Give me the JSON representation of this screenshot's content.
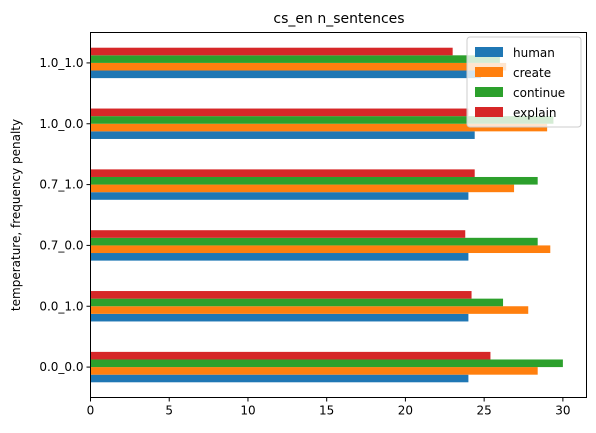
{
  "chart_data": {
    "type": "bar",
    "orientation": "horizontal",
    "title": "cs_en n_sentences",
    "xlabel": "",
    "ylabel": "temperature, frequency penalty",
    "categories": [
      "0.0_0.0",
      "0.0_1.0",
      "0.7_0.0",
      "0.7_1.0",
      "1.0_0.0",
      "1.0_1.0"
    ],
    "series": [
      {
        "name": "human",
        "color": "#1f77b4",
        "values": [
          24.0,
          24.0,
          24.0,
          24.0,
          24.4,
          24.8
        ]
      },
      {
        "name": "create",
        "color": "#ff7f0e",
        "values": [
          28.4,
          27.8,
          29.2,
          26.9,
          29.0,
          26.4
        ]
      },
      {
        "name": "continue",
        "color": "#2ca02c",
        "values": [
          30.0,
          26.2,
          28.4,
          28.4,
          29.4,
          26.0
        ]
      },
      {
        "name": "explain",
        "color": "#d62728",
        "values": [
          25.4,
          24.2,
          23.8,
          24.4,
          24.0,
          23.0
        ]
      }
    ],
    "xlim": [
      0,
      31.5
    ],
    "xticks": [
      0,
      5,
      10,
      15,
      20,
      25,
      30
    ],
    "grid": false,
    "legend_position": "top-right"
  }
}
